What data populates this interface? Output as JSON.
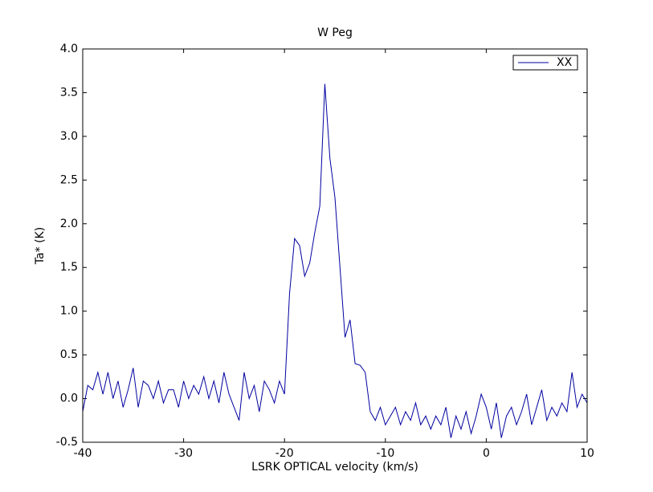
{
  "chart_data": {
    "type": "line",
    "title": "W Peg",
    "xlabel": "LSRK OPTICAL velocity (km/s)",
    "ylabel": "Ta* (K)",
    "xlim": [
      -40,
      10
    ],
    "xticks": [
      -40,
      -30,
      -20,
      -10,
      0,
      10
    ],
    "ylim": [
      -0.5,
      4.0
    ],
    "yticks": [
      -0.5,
      {
        "value": 0,
        "label": "0.0"
      },
      0.5,
      {
        "value": 1,
        "label": "1.0"
      },
      1.5,
      {
        "value": 2,
        "label": "2.0"
      },
      2.5,
      {
        "value": 3,
        "label": "3.0"
      },
      3.5,
      {
        "value": 4,
        "label": "4.0"
      }
    ],
    "grid": false,
    "legend": "upper right",
    "x": [
      -40,
      -39.5,
      -39,
      -38.5,
      -38,
      -37.5,
      -37,
      -36.5,
      -36,
      -35.5,
      -35,
      -34.5,
      -34,
      -33.5,
      -33,
      -32.5,
      -32,
      -31.5,
      -31,
      -30.5,
      -30,
      -29.5,
      -29,
      -28.5,
      -28,
      -27.5,
      -27,
      -26.5,
      -26,
      -25.5,
      -25,
      -24.5,
      -24,
      -23.5,
      -23,
      -22.5,
      -22,
      -21.5,
      -21,
      -20.5,
      -20,
      -19.5,
      -19,
      -18.5,
      -18,
      -17.5,
      -17,
      -16.5,
      -16,
      -15.5,
      -15,
      -14.5,
      -14,
      -13.5,
      -13,
      -12.5,
      -12,
      -11.5,
      -11,
      -10.5,
      -10,
      -9.5,
      -9,
      -8.5,
      -8,
      -7.5,
      -7,
      -6.5,
      -6,
      -5.5,
      -5,
      -4.5,
      -4,
      -3.5,
      -3,
      -2.5,
      -2,
      -1.5,
      -1,
      -0.5,
      0,
      0.5,
      1,
      1.5,
      2,
      2.5,
      3,
      3.5,
      4,
      4.5,
      5,
      5.5,
      6,
      6.5,
      7,
      7.5,
      8,
      8.5,
      9,
      9.5,
      10
    ],
    "series": [
      {
        "name": "XX",
        "color": "#0000a0",
        "values": [
          -0.15,
          0.15,
          0.1,
          0.3,
          0.05,
          0.3,
          0.0,
          0.2,
          -0.1,
          0.1,
          0.35,
          -0.1,
          0.2,
          0.15,
          0.0,
          0.2,
          -0.05,
          0.1,
          0.1,
          -0.1,
          0.2,
          0.0,
          0.15,
          0.05,
          0.25,
          0.0,
          0.2,
          -0.05,
          0.3,
          0.05,
          -0.1,
          -0.25,
          0.3,
          0.0,
          0.15,
          -0.15,
          0.2,
          0.1,
          -0.05,
          0.2,
          0.05,
          1.2,
          1.83,
          1.75,
          1.4,
          1.55,
          1.9,
          2.2,
          3.6,
          2.75,
          2.3,
          1.5,
          0.7,
          0.9,
          0.4,
          0.38,
          0.3,
          -0.15,
          -0.25,
          -0.1,
          -0.3,
          -0.2,
          -0.1,
          -0.3,
          -0.15,
          -0.25,
          -0.05,
          -0.3,
          -0.2,
          -0.35,
          -0.2,
          -0.3,
          -0.1,
          -0.45,
          -0.2,
          -0.35,
          -0.15,
          -0.4,
          -0.2,
          0.05,
          -0.1,
          -0.35,
          -0.05,
          -0.45,
          -0.2,
          -0.1,
          -0.3,
          -0.15,
          0.05,
          -0.3,
          -0.1,
          0.1,
          -0.25,
          -0.1,
          -0.2,
          -0.05,
          -0.15,
          0.3,
          -0.1,
          0.05,
          -0.05
        ]
      }
    ]
  }
}
